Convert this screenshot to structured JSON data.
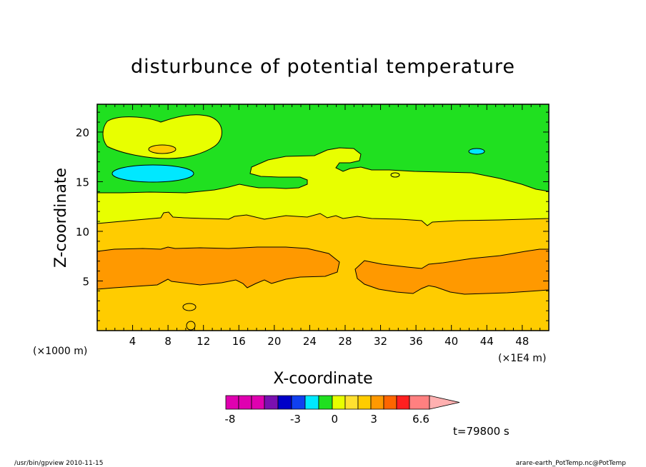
{
  "chart_data": {
    "type": "contour",
    "title": "disturbunce of potential temperature",
    "xlabel": "X-coordinate",
    "ylabel": "Z-coordinate",
    "x_unit_left": "(×1000 m)",
    "x_unit_right": "(×1E4 m)",
    "xlim": [
      0,
      51
    ],
    "ylim": [
      0,
      22.8
    ],
    "x_ticks": [
      4,
      8,
      12,
      16,
      20,
      24,
      28,
      32,
      36,
      40,
      44,
      48
    ],
    "y_ticks": [
      5,
      10,
      15,
      20
    ],
    "colorbar": {
      "colors": [
        "#e000b0",
        "#e000b0",
        "#e000b0",
        "#7a10b0",
        "#0000c8",
        "#1040f0",
        "#00e8ff",
        "#20e020",
        "#e8ff00",
        "#ffe030",
        "#ffcc00",
        "#ff9900",
        "#ff6600",
        "#ff2020",
        "#ff8080",
        "#ffb0b0"
      ],
      "tick_labels": [
        "-8",
        "-3",
        "0",
        "3",
        "6.6"
      ],
      "tick_values": [
        -8,
        -3,
        0,
        3,
        6.6
      ]
    },
    "time_label": "t=79800 s",
    "footer_left": "/usr/bin/gpview  2010-11-15",
    "footer_right": "arare-earth_PotTemp.nc@PotTemp"
  }
}
